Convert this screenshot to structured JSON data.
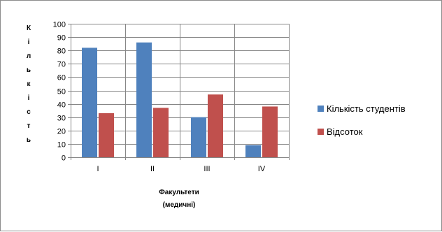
{
  "chart_data": {
    "type": "bar",
    "categories": [
      "I",
      "II",
      "III",
      "IV"
    ],
    "series": [
      {
        "name": "Кількість студентів",
        "color": "#4F81BD",
        "values": [
          82,
          86,
          30,
          9
        ]
      },
      {
        "name": "Відсоток",
        "color": "#C0504D",
        "values": [
          33,
          37,
          47,
          38
        ]
      }
    ],
    "ylabel_letters": [
      "К",
      "і",
      "л",
      "ь",
      "к",
      "і",
      "с",
      "т",
      "ь"
    ],
    "xlabel_lines": [
      "Факультети",
      "(медичні)"
    ],
    "ylim": [
      0,
      100
    ],
    "yticks": [
      "0",
      "10",
      "20",
      "30",
      "40",
      "50",
      "60",
      "70",
      "80",
      "90",
      "100"
    ],
    "grid": true,
    "legend": "right"
  }
}
